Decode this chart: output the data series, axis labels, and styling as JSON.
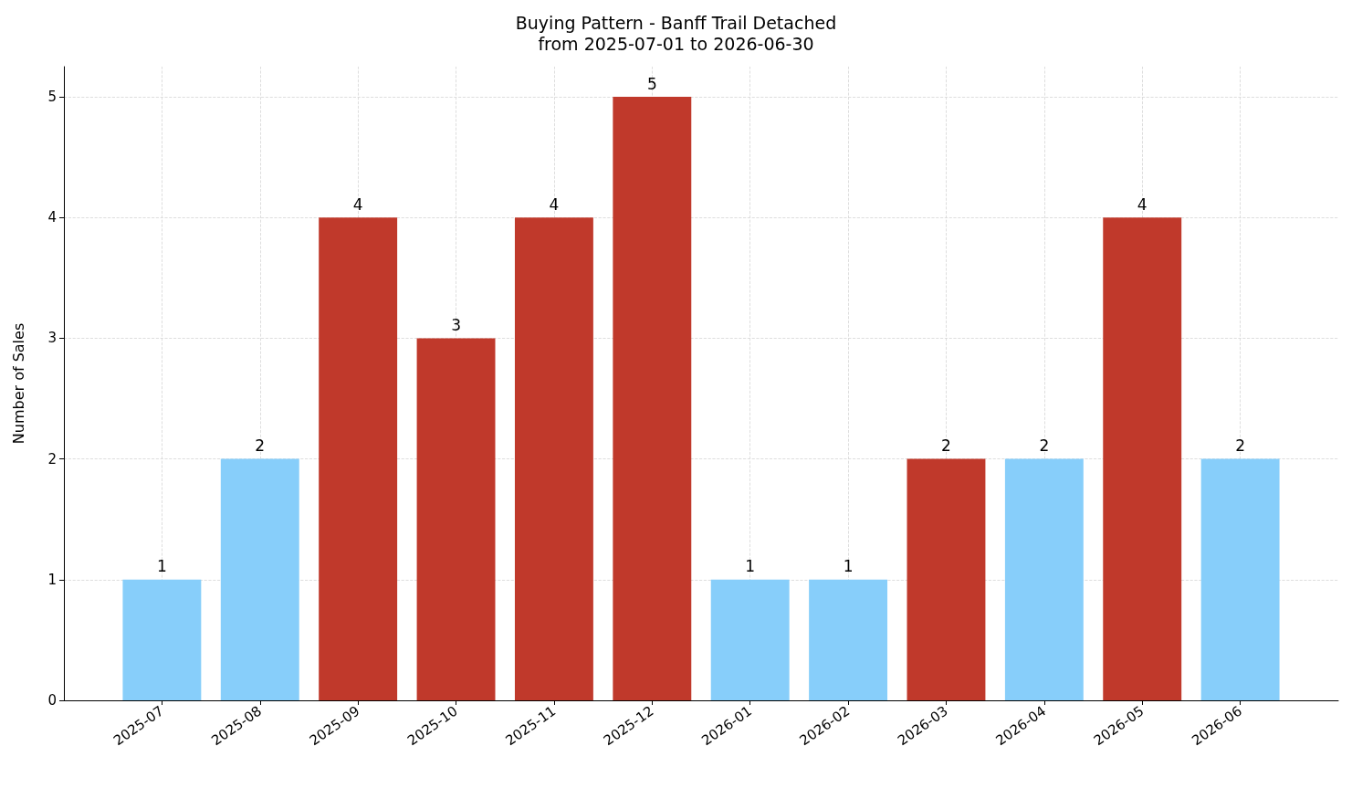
{
  "chart_data": {
    "type": "bar",
    "title": "Buying Pattern - Banff Trail Detached",
    "subtitle": "from 2025-07-01 to 2026-06-30",
    "ylabel": "Number of Sales",
    "categories": [
      "2025-07",
      "2025-08",
      "2025-09",
      "2025-10",
      "2025-11",
      "2025-12",
      "2026-01",
      "2026-02",
      "2026-03",
      "2026-04",
      "2026-05",
      "2026-06"
    ],
    "values": [
      1,
      2,
      4,
      3,
      4,
      5,
      1,
      1,
      2,
      2,
      4,
      2
    ],
    "colors": [
      "#87cefa",
      "#87cefa",
      "#c0392b",
      "#c0392b",
      "#c0392b",
      "#c0392b",
      "#87cefa",
      "#87cefa",
      "#c0392b",
      "#87cefa",
      "#c0392b",
      "#87cefa"
    ],
    "ylim": [
      0,
      5.25
    ],
    "yticks": [
      0,
      1,
      2,
      3,
      4,
      5
    ],
    "grid": true,
    "data_labels": true
  }
}
